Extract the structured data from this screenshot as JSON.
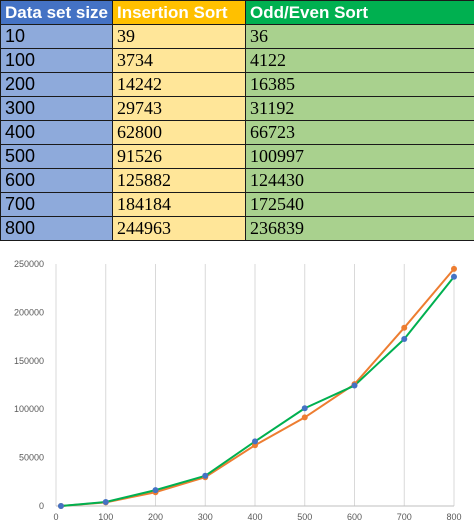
{
  "table": {
    "headers": [
      "Data set size",
      "Insertion Sort",
      "Odd/Even Sort"
    ],
    "rows": [
      [
        "10",
        "39",
        "36"
      ],
      [
        "100",
        "3734",
        "4122"
      ],
      [
        "200",
        "14242",
        "16385"
      ],
      [
        "300",
        "29743",
        "31192"
      ],
      [
        "400",
        "62800",
        "66723"
      ],
      [
        "500",
        "91526",
        "100997"
      ],
      [
        "600",
        "125882",
        "124430"
      ],
      [
        "700",
        "184184",
        "172540"
      ],
      [
        "800",
        "244963",
        "236839"
      ]
    ]
  },
  "chart_data": {
    "type": "scatter",
    "lines": true,
    "x": [
      10,
      100,
      200,
      300,
      400,
      500,
      600,
      700,
      800
    ],
    "series": [
      {
        "values": [
          39,
          3734,
          14242,
          29743,
          62800,
          91526,
          125882,
          184184,
          244963
        ],
        "line_color": "#ed7d31",
        "marker_color": "#ed7d31"
      },
      {
        "values": [
          36,
          4122,
          16385,
          31192,
          66723,
          100997,
          124430,
          172540,
          236839
        ],
        "line_color": "#00b050",
        "marker_color": "#4472c4"
      }
    ],
    "xlim": [
      0,
      800
    ],
    "ylim": [
      0,
      250000
    ],
    "xticks": [
      0,
      100,
      200,
      300,
      400,
      500,
      600,
      700,
      800
    ],
    "yticks": [
      0,
      50000,
      100000,
      150000,
      200000,
      250000
    ],
    "grid": {
      "x": true,
      "y": false
    },
    "legend": "none"
  }
}
